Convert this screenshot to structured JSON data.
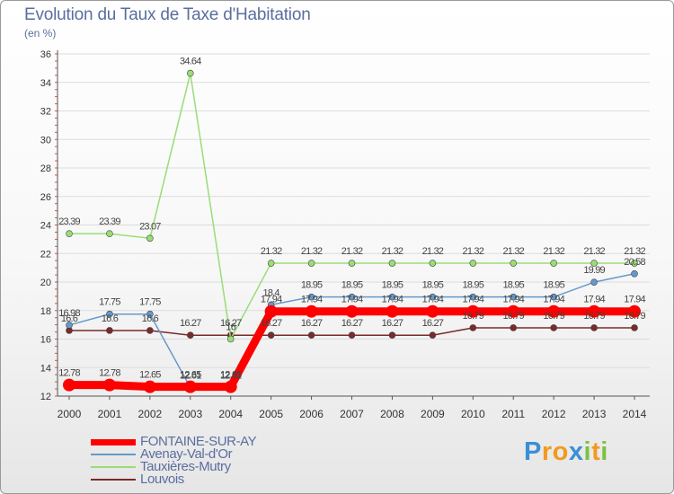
{
  "chart_data": {
    "type": "line",
    "title": "Evolution du Taux de Taxe d'Habitation",
    "ylabel": "(en %)",
    "xlabel": "",
    "ylim": [
      12,
      36
    ],
    "yticks": [
      "12",
      "14",
      "16",
      "18",
      "20",
      "22",
      "24",
      "26",
      "28",
      "30",
      "32",
      "34",
      "36"
    ],
    "categories": [
      "2000",
      "2001",
      "2002",
      "2003",
      "2004",
      "2005",
      "2006",
      "2007",
      "2008",
      "2009",
      "2010",
      "2011",
      "2012",
      "2013",
      "2014"
    ],
    "legend_position": "bottom-left",
    "series": [
      {
        "name": "Louvois",
        "color": "#7a2a2a",
        "style": "thin",
        "values": [
          16.6,
          16.6,
          16.6,
          16.27,
          16.27,
          16.27,
          16.27,
          16.27,
          16.27,
          16.27,
          16.79,
          16.79,
          16.79,
          16.79,
          16.79
        ],
        "labels": [
          "16.6",
          "16.6",
          "16.6",
          "16.27",
          "16.27",
          "16.27",
          "16.27",
          "16.27",
          "16.27",
          "16.27",
          "16.79",
          "16.79",
          "16.79",
          "16.79",
          "16.79"
        ]
      },
      {
        "name": "Tauxières-Mutry",
        "color": "#99dd77",
        "style": "thin",
        "values": [
          23.39,
          23.39,
          23.07,
          34.64,
          16.0,
          21.32,
          21.32,
          21.32,
          21.32,
          21.32,
          21.32,
          21.32,
          21.32,
          21.32,
          21.32
        ],
        "labels": [
          "23.39",
          "23.39",
          "23.07",
          "34.64",
          "16",
          "21.32",
          "21.32",
          "21.32",
          "21.32",
          "21.32",
          "21.32",
          "21.32",
          "21.32",
          "21.32",
          "21.32"
        ]
      },
      {
        "name": "Avenay-Val-d'Or",
        "color": "#6699cc",
        "style": "thin",
        "values": [
          16.98,
          17.75,
          17.75,
          12.61,
          12.61,
          18.4,
          18.95,
          18.95,
          18.95,
          18.95,
          18.95,
          18.95,
          18.95,
          19.99,
          20.58
        ],
        "labels": [
          "16.98",
          "17.75",
          "17.75",
          "12.61",
          "12.61",
          "18.4",
          "18.95",
          "18.95",
          "18.95",
          "18.95",
          "18.95",
          "18.95",
          "18.95",
          "19.99",
          "20.58"
        ]
      },
      {
        "name": "FONTAINE-SUR-AY",
        "color": "#ff0000",
        "style": "thick",
        "values": [
          12.78,
          12.78,
          12.65,
          12.65,
          12.65,
          17.94,
          17.94,
          17.94,
          17.94,
          17.94,
          17.94,
          17.94,
          17.94,
          17.94,
          17.94
        ],
        "labels": [
          "12.78",
          "12.78",
          "12.65",
          "12.65",
          "12.65",
          "17.94",
          "17.94",
          "17.94",
          "17.94",
          "17.94",
          "17.94",
          "17.94",
          "17.94",
          "17.94",
          "17.94"
        ]
      }
    ],
    "legend": [
      "FONTAINE-SUR-AY",
      "Avenay-Val-d'Or",
      "Tauxières-Mutry",
      "Louvois"
    ]
  },
  "logo": {
    "letters": [
      "P",
      "r",
      "o",
      "x",
      "i",
      "t",
      "i"
    ]
  }
}
